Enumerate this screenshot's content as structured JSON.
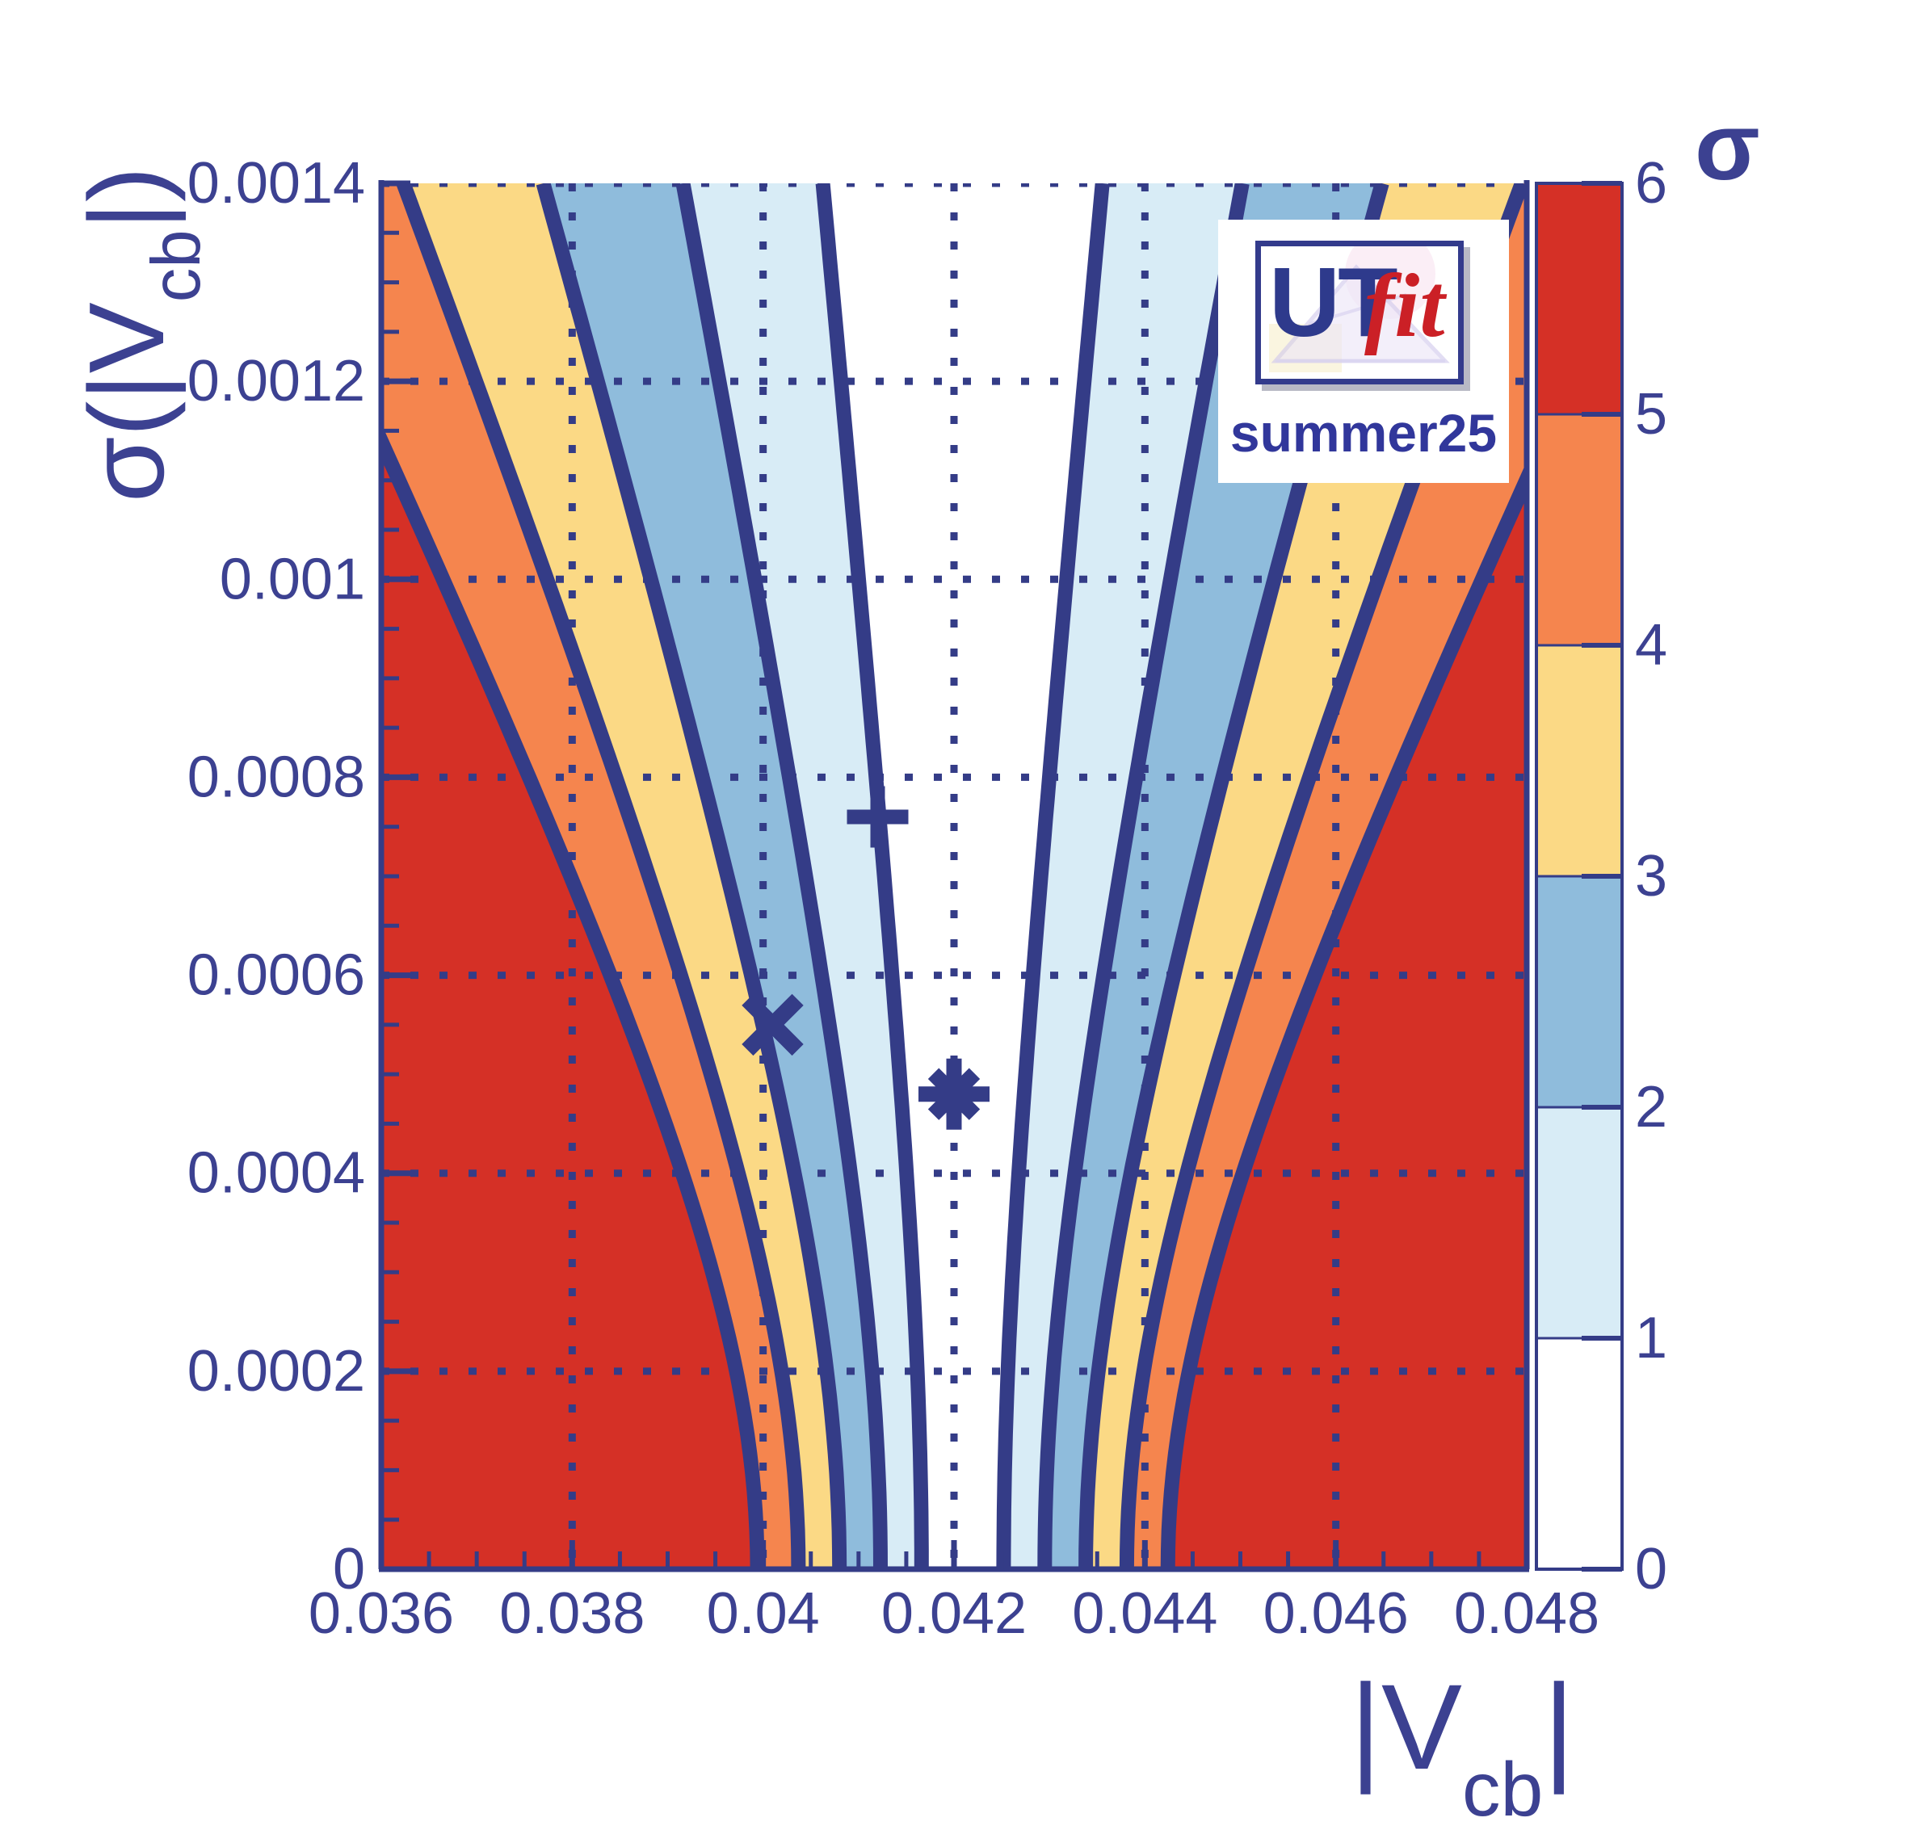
{
  "chart_data": {
    "type": "contour",
    "title": "",
    "x_axis": {
      "label_pre": "|V",
      "label_sub": "cb",
      "label_post": "|",
      "min": 0.036,
      "max": 0.048,
      "ticks": [
        {
          "v": 0.036,
          "label": "0.036"
        },
        {
          "v": 0.038,
          "label": "0.038"
        },
        {
          "v": 0.04,
          "label": "0.04"
        },
        {
          "v": 0.042,
          "label": "0.042"
        },
        {
          "v": 0.044,
          "label": "0.044"
        },
        {
          "v": 0.046,
          "label": "0.046"
        },
        {
          "v": 0.048,
          "label": "0.048"
        }
      ],
      "minor_step": 0.0005
    },
    "y_axis": {
      "label_pre": "σ(|V",
      "label_sub": "cb",
      "label_post": "|)",
      "min": 0,
      "max": 0.0014,
      "ticks": [
        {
          "v": 0,
          "label": "0"
        },
        {
          "v": 0.0002,
          "label": "0.0002"
        },
        {
          "v": 0.0004,
          "label": "0.0004"
        },
        {
          "v": 0.0006,
          "label": "0.0006"
        },
        {
          "v": 0.0008,
          "label": "0.0008"
        },
        {
          "v": 0.001,
          "label": "0.001"
        },
        {
          "v": 0.0012,
          "label": "0.0012"
        },
        {
          "v": 0.0014,
          "label": "0.0014"
        }
      ],
      "minor_step": 5e-05
    },
    "z_axis": {
      "label": "σ",
      "min": 0,
      "max": 6,
      "ticks": [
        "0",
        "1",
        "2",
        "3",
        "4",
        "5",
        "6"
      ],
      "bands": [
        {
          "from": 0,
          "to": 1,
          "color": "#ffffff"
        },
        {
          "from": 1,
          "to": 2,
          "color": "#d8ecf6"
        },
        {
          "from": 2,
          "to": 3,
          "color": "#8fbcdc"
        },
        {
          "from": 3,
          "to": 4,
          "color": "#fbd985"
        },
        {
          "from": 4,
          "to": 5,
          "color": "#f5854e"
        },
        {
          "from": 5,
          "to": 6,
          "color": "#d53026"
        }
      ]
    },
    "contour_model": {
      "comment": "sigma(x,y) = |x - center| / sqrt(y^2 + sigma_fit^2); contour n: x = center ± n*sqrt(y^2+sigma_fit^2)",
      "center": 0.04209,
      "sigma_fit": 0.00043,
      "levels": [
        1,
        2,
        3,
        4,
        5
      ],
      "band_colors": [
        "#ffffff",
        "#d8ecf6",
        "#8fbcdc",
        "#fbd985",
        "#f5854e",
        "#d53026"
      ],
      "outer_color": "#d53026",
      "line_color": "#343c87",
      "line_width": 18
    },
    "grid": {
      "color": "#343c87",
      "dash": "10 26",
      "width": 9,
      "x_lines": [
        0.038,
        0.04,
        0.042,
        0.044,
        0.046
      ],
      "y_lines": [
        0.0002,
        0.0004,
        0.0006,
        0.0008,
        0.001,
        0.0012,
        0.0014
      ]
    },
    "markers": [
      {
        "glyph": "plus",
        "x": 0.0412,
        "y": 0.00076
      },
      {
        "glyph": "cross",
        "x": 0.0401,
        "y": 0.00055
      },
      {
        "glyph": "asterisk",
        "x": 0.042,
        "y": 0.00048
      }
    ],
    "frame_color": "#343c87",
    "text_color": "#3c4191"
  },
  "logo": {
    "ut": "UT",
    "fit": "fit",
    "subtitle": "summer25",
    "ut_color": "#2e3a8c",
    "fit_color": "#cb2026",
    "border_color": "#333b8c"
  }
}
